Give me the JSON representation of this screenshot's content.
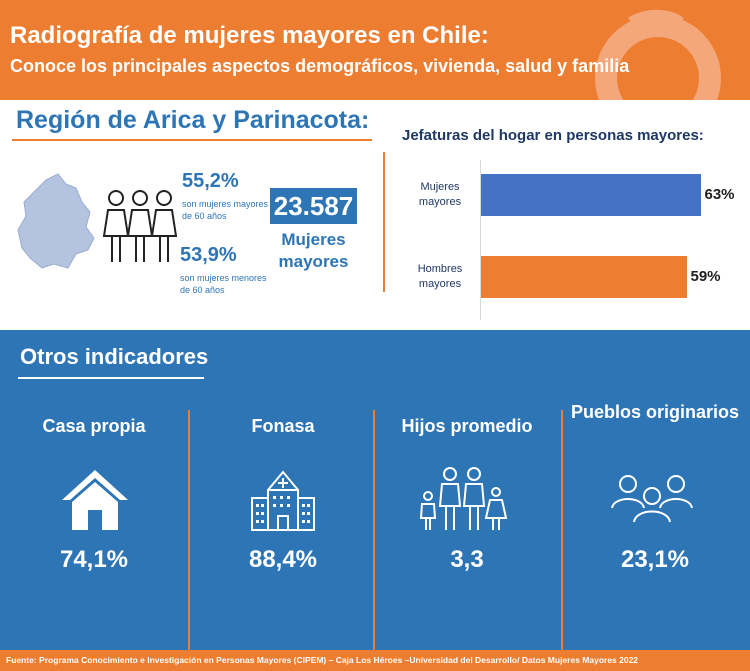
{
  "header": {
    "title": "Radiografía de mujeres mayores en Chile:",
    "subtitle": "Conoce los principales aspectos demográficos, vivienda, salud y familia",
    "brand_color": "#ed7d31"
  },
  "region": {
    "title": "Región de Arica y Parinacota:",
    "stat1_value": "55,2%",
    "stat1_label": "son mujeres mayores de 60 años",
    "stat2_value": "53,9%",
    "stat2_label": "son mujeres menores de 60 años",
    "count_value": "23.587",
    "count_label": "Mujeres mayores",
    "accent_color": "#2e75b6"
  },
  "chart_data": {
    "type": "bar",
    "orientation": "horizontal",
    "title": "Jefaturas del hogar en personas mayores:",
    "categories": [
      "Mujeres mayores",
      "Hombres mayores"
    ],
    "values": [
      63,
      59
    ],
    "value_labels": [
      "63%",
      "59%"
    ],
    "colors": [
      "#4472c4",
      "#ed7d31"
    ],
    "xlim": [
      0,
      100
    ]
  },
  "indicators": {
    "title": "Otros indicadores",
    "items": [
      {
        "label": "Casa propia",
        "value": "74,1%",
        "icon": "house-icon"
      },
      {
        "label": "Fonasa",
        "value": "88,4%",
        "icon": "hospital-icon"
      },
      {
        "label": "Hijos promedio",
        "value": "3,3",
        "icon": "family-icon"
      },
      {
        "label": "Pueblos originarios",
        "value": "23,1%",
        "icon": "community-icon"
      }
    ]
  },
  "footer": {
    "source": "Fuente: Programa Conocimiento e Investigación en Personas Mayores (CIPEM) – Caja Los Héroes –Universidad del Desarrollo/ Datos Mujeres Mayores 2022"
  }
}
